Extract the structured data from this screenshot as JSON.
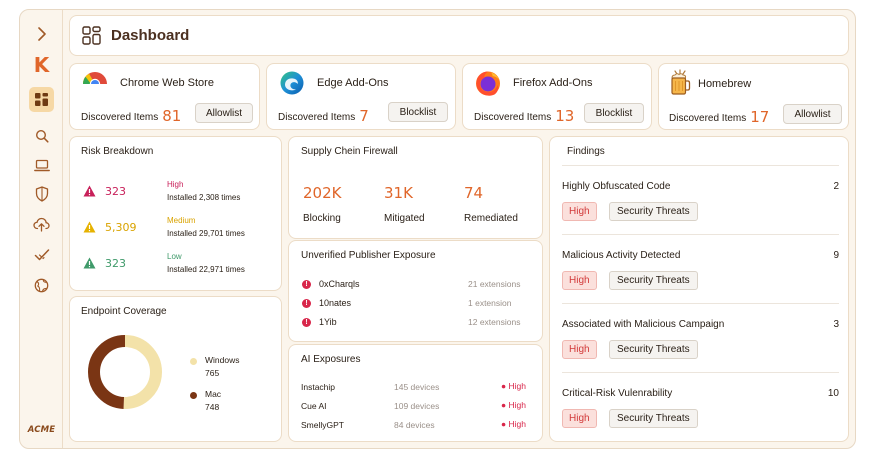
{
  "app": {
    "brand_logo_letter": "K",
    "footer_logo": "ACME"
  },
  "sidebar": {
    "items": [
      {
        "icon": "chevron-right-icon"
      },
      {
        "icon": "dashboard-icon",
        "active": true
      },
      {
        "icon": "search-icon"
      },
      {
        "icon": "laptop-icon"
      },
      {
        "icon": "shield-icon"
      },
      {
        "icon": "cloud-upload-icon"
      },
      {
        "icon": "check-double-icon"
      },
      {
        "icon": "globe-icon"
      }
    ]
  },
  "header": {
    "title": "Dashboard",
    "icon": "dashboard-icon"
  },
  "stores": [
    {
      "name": "Chrome Web Store",
      "discovered_label": "Discovered Items",
      "count": "81",
      "action": "Allowlist",
      "icon": "chrome-icon"
    },
    {
      "name": "Edge Add-Ons",
      "discovered_label": "Discovered Items",
      "count": "7",
      "action": "Blocklist",
      "icon": "edge-icon"
    },
    {
      "name": "Firefox Add-Ons",
      "discovered_label": "Discovered Items",
      "count": "13",
      "action": "Blocklist",
      "icon": "firefox-icon"
    },
    {
      "name": "Homebrew",
      "discovered_label": "Discovered Items",
      "count": "17",
      "action": "Allowlist",
      "icon": "homebrew-icon"
    }
  ],
  "risk": {
    "title": "Risk Breakdown",
    "rows": [
      {
        "value": "323",
        "level": "High",
        "installed": "Installed 2,308 times",
        "color": "#c8205a"
      },
      {
        "value": "5,309",
        "level": "Medium",
        "installed": "Installed 29,701 times",
        "color": "#d9a300"
      },
      {
        "value": "323",
        "level": "Low",
        "installed": "Installed 22,971 times",
        "color": "#3f9a6a"
      }
    ]
  },
  "supply_chain": {
    "title": "Supply Chein Firewall",
    "stats": [
      {
        "value": "202K",
        "label": "Blocking"
      },
      {
        "value": "31K",
        "label": "Mitigated"
      },
      {
        "value": "74",
        "label": "Remediated"
      }
    ]
  },
  "publisher": {
    "title": "Unverified Publisher Exposure",
    "rows": [
      {
        "name": "0xCharqls",
        "extensions": "21 extensions"
      },
      {
        "name": "10nates",
        "extensions": "1 extension"
      },
      {
        "name": "1Yib",
        "extensions": "12 extensions"
      }
    ]
  },
  "ai": {
    "title": "AI Exposures",
    "rows": [
      {
        "name": "Instachip",
        "devices": "145 devices",
        "severity": "High"
      },
      {
        "name": "Cue AI",
        "devices": "109 devices",
        "severity": "High"
      },
      {
        "name": "SmellyGPT",
        "devices": "84 devices",
        "severity": "High"
      }
    ]
  },
  "endpoint": {
    "title": "Endpoint Coverage",
    "chart_data": {
      "type": "pie",
      "categories": [
        "Windows",
        "Mac"
      ],
      "values": [
        765,
        748
      ],
      "colors": [
        "#f3e2a9",
        "#7a3514"
      ]
    },
    "legend": [
      {
        "name": "Windows",
        "value": "765"
      },
      {
        "name": "Mac",
        "value": "748"
      }
    ]
  },
  "findings": {
    "title": "Findings",
    "rows": [
      {
        "name": "Highly Obfuscated Code",
        "count": "2",
        "severity": "High",
        "category": "Security Threats"
      },
      {
        "name": "Malicious Activity Detected",
        "count": "9",
        "severity": "High",
        "category": "Security Threats"
      },
      {
        "name": "Associated with Malicious Campaign",
        "count": "3",
        "severity": "High",
        "category": "Security Threats"
      },
      {
        "name": "Critical-Risk Vulenrability",
        "count": "10",
        "severity": "High",
        "category": "Security Threats"
      }
    ]
  }
}
